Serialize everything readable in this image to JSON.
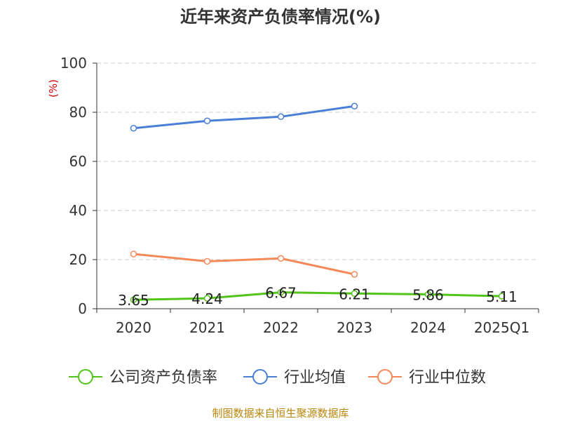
{
  "chart_data": {
    "type": "line",
    "title": "近年来资产负债率情况(%)",
    "ylabel": "(%)",
    "categories": [
      "2020",
      "2021",
      "2022",
      "2023",
      "2024",
      "2025Q1"
    ],
    "ylim": [
      0,
      100
    ],
    "yticks": [
      0,
      20,
      40,
      60,
      80,
      100
    ],
    "grid": true,
    "legend_position": "bottom",
    "series": [
      {
        "name": "公司资产负债率",
        "values": [
          3.65,
          4.24,
          6.67,
          6.21,
          5.86,
          5.11
        ],
        "labels": [
          "3.65",
          "4.24",
          "6.67",
          "6.21",
          "5.86",
          "5.11"
        ],
        "color": "#52c41a"
      },
      {
        "name": "行业均值",
        "values": [
          73.5,
          76.5,
          78.2,
          82.5,
          null,
          null
        ],
        "color": "#4a7fd8"
      },
      {
        "name": "行业中位数",
        "values": [
          22.3,
          19.3,
          20.5,
          14.0,
          null,
          null
        ],
        "color": "#f5895a"
      }
    ]
  },
  "footer": {
    "source": "制图数据来自恒生聚源数据库"
  }
}
